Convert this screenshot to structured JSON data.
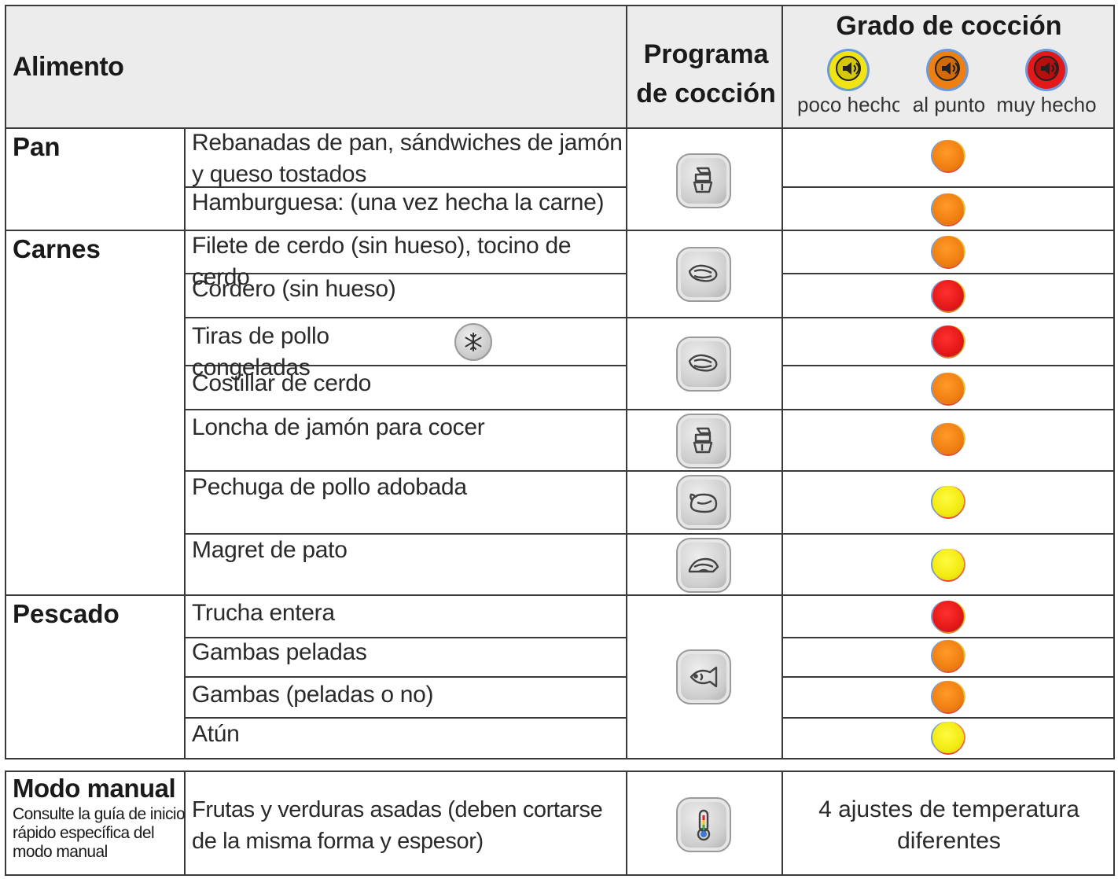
{
  "header": {
    "alimento": "Alimento",
    "programa_line1": "Programa",
    "programa_line2": "de cocción",
    "grado": "Grado de cocción",
    "levels": [
      {
        "label": "poco hecho",
        "color": "#f2e412"
      },
      {
        "label": "al punto",
        "color": "#f07f12"
      },
      {
        "label": "muy hecho",
        "color": "#e41818"
      }
    ]
  },
  "categories": {
    "pan": "Pan",
    "carnes": "Carnes",
    "pescado": "Pescado"
  },
  "foods": [
    {
      "name": "Rebanadas de pan, sándwiches de jamón y queso tostados",
      "level": "al punto"
    },
    {
      "name": "Hamburguesa: (una vez hecha la carne)",
      "level": "al punto"
    },
    {
      "name": "Filete de cerdo (sin hueso), tocino de cerdo",
      "level": "al punto"
    },
    {
      "name": "Cordero (sin hueso)",
      "level": "muy hecho"
    },
    {
      "name": "Tiras de pollo congeladas",
      "level": "muy hecho",
      "icon": "snowflake-icon"
    },
    {
      "name": "Costillar de cerdo",
      "level": "al punto"
    },
    {
      "name": "Loncha de jamón para cocer",
      "level": "al punto"
    },
    {
      "name": "Pechuga de pollo adobada",
      "level": "poco hecho"
    },
    {
      "name": "Magret de pato",
      "level": "poco hecho"
    },
    {
      "name": "Trucha entera",
      "level": "muy hecho"
    },
    {
      "name": "Gambas peladas",
      "level": "al punto"
    },
    {
      "name": "Gambas (peladas o no)",
      "level": "al punto"
    },
    {
      "name": "Atún",
      "level": "poco hecho"
    }
  ],
  "programs": [
    {
      "icon": "sandwich-program-icon"
    },
    {
      "icon": "meat-program-icon"
    },
    {
      "icon": "meat-program-icon"
    },
    {
      "icon": "sandwich-program-icon"
    },
    {
      "icon": "poultry-program-icon"
    },
    {
      "icon": "duck-program-icon"
    },
    {
      "icon": "fish-program-icon"
    },
    {
      "icon": "thermometer-program-icon"
    }
  ],
  "manual": {
    "title": "Modo manual",
    "subtitle": "Consulte la guía de inicio rápido específica del modo manual",
    "food": "Frutas y verduras asadas (deben cortarse de la misma forma y espesor)",
    "temperature": "4 ajustes de temperatura diferentes"
  }
}
